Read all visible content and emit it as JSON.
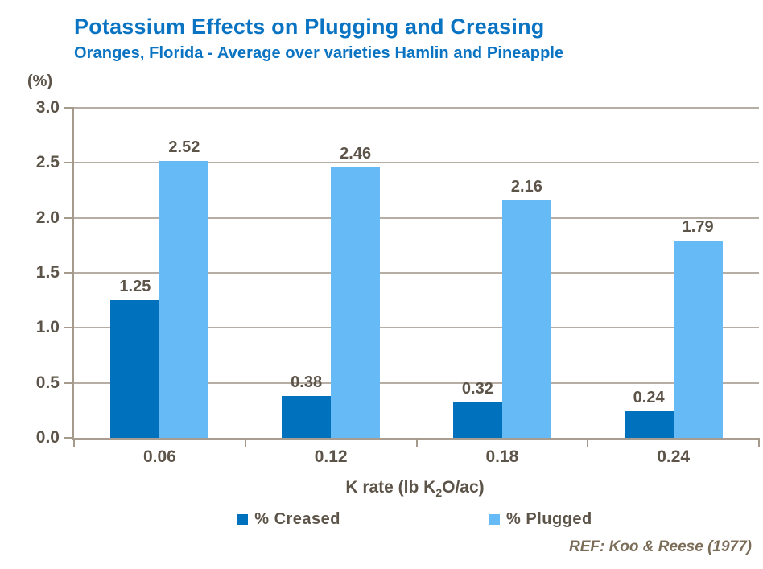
{
  "chart_data": {
    "type": "bar",
    "title": "Potassium Effects on Plugging and Creasing",
    "subtitle": "Oranges, Florida - Average over varieties Hamlin and Pineapple",
    "y_unit_label": "(%)",
    "categories": [
      "0.06",
      "0.12",
      "0.18",
      "0.24"
    ],
    "series": [
      {
        "name": "% Creased",
        "color": "#0071BC",
        "values": [
          1.25,
          0.38,
          0.32,
          0.24
        ]
      },
      {
        "name": "% Plugged",
        "color": "#66BBF7",
        "values": [
          2.52,
          2.46,
          2.16,
          1.79
        ]
      }
    ],
    "data_labels": [
      [
        "1.25",
        "0.38",
        "0.32",
        "0.24"
      ],
      [
        "2.52",
        "2.46",
        "2.16",
        "1.79"
      ]
    ],
    "xlabel": "K rate (lb K2O/ac)",
    "xlabel_parts": {
      "pre": "K rate (lb K",
      "sub": "2",
      "post": "O/ac)"
    },
    "ylim": [
      0,
      3
    ],
    "ytick_step": 0.5,
    "yticks": [
      "3.0",
      "2.5",
      "2.0",
      "1.5",
      "1.0",
      "0.5",
      "0.0"
    ],
    "grid": true,
    "legend_position": "bottom"
  },
  "footer": {
    "ref": "REF: Koo & Reese (1977)"
  },
  "colors": {
    "title_blue": "#0A74C3",
    "creased_bar": "#0071BC",
    "plugged_bar": "#66BBF7",
    "label_text": "#5D5449",
    "gridline": "#B6ADA4",
    "axis_line": "#A59A8C",
    "ref_text": "#7C6D59"
  }
}
